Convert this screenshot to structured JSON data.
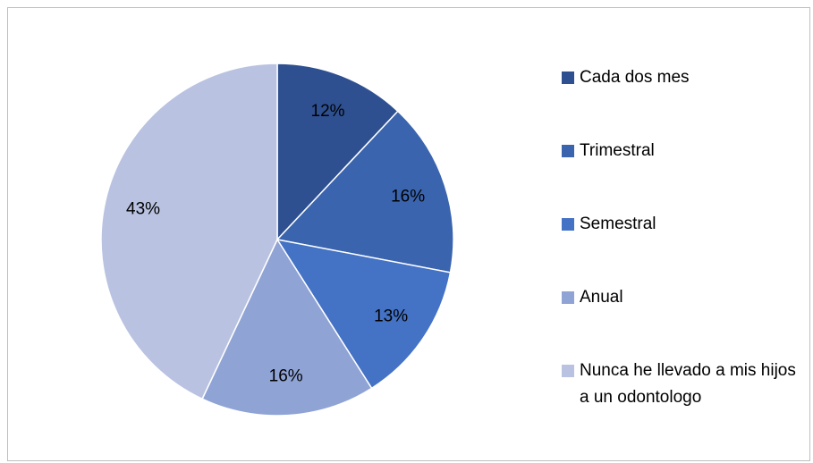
{
  "chart_data": {
    "type": "pie",
    "categories": [
      "Cada dos mes",
      "Trimestral",
      "Semestral",
      "Anual",
      "Nunca he llevado a mis hijos a un odontologo"
    ],
    "values": [
      12,
      16,
      13,
      16,
      43
    ],
    "value_labels": [
      "12%",
      "16%",
      "13%",
      "16%",
      "43%"
    ],
    "colors": [
      "#2E5090",
      "#3A64AE",
      "#4472C4",
      "#8FA3D5",
      "#B9C2E1"
    ],
    "legend": "right"
  }
}
